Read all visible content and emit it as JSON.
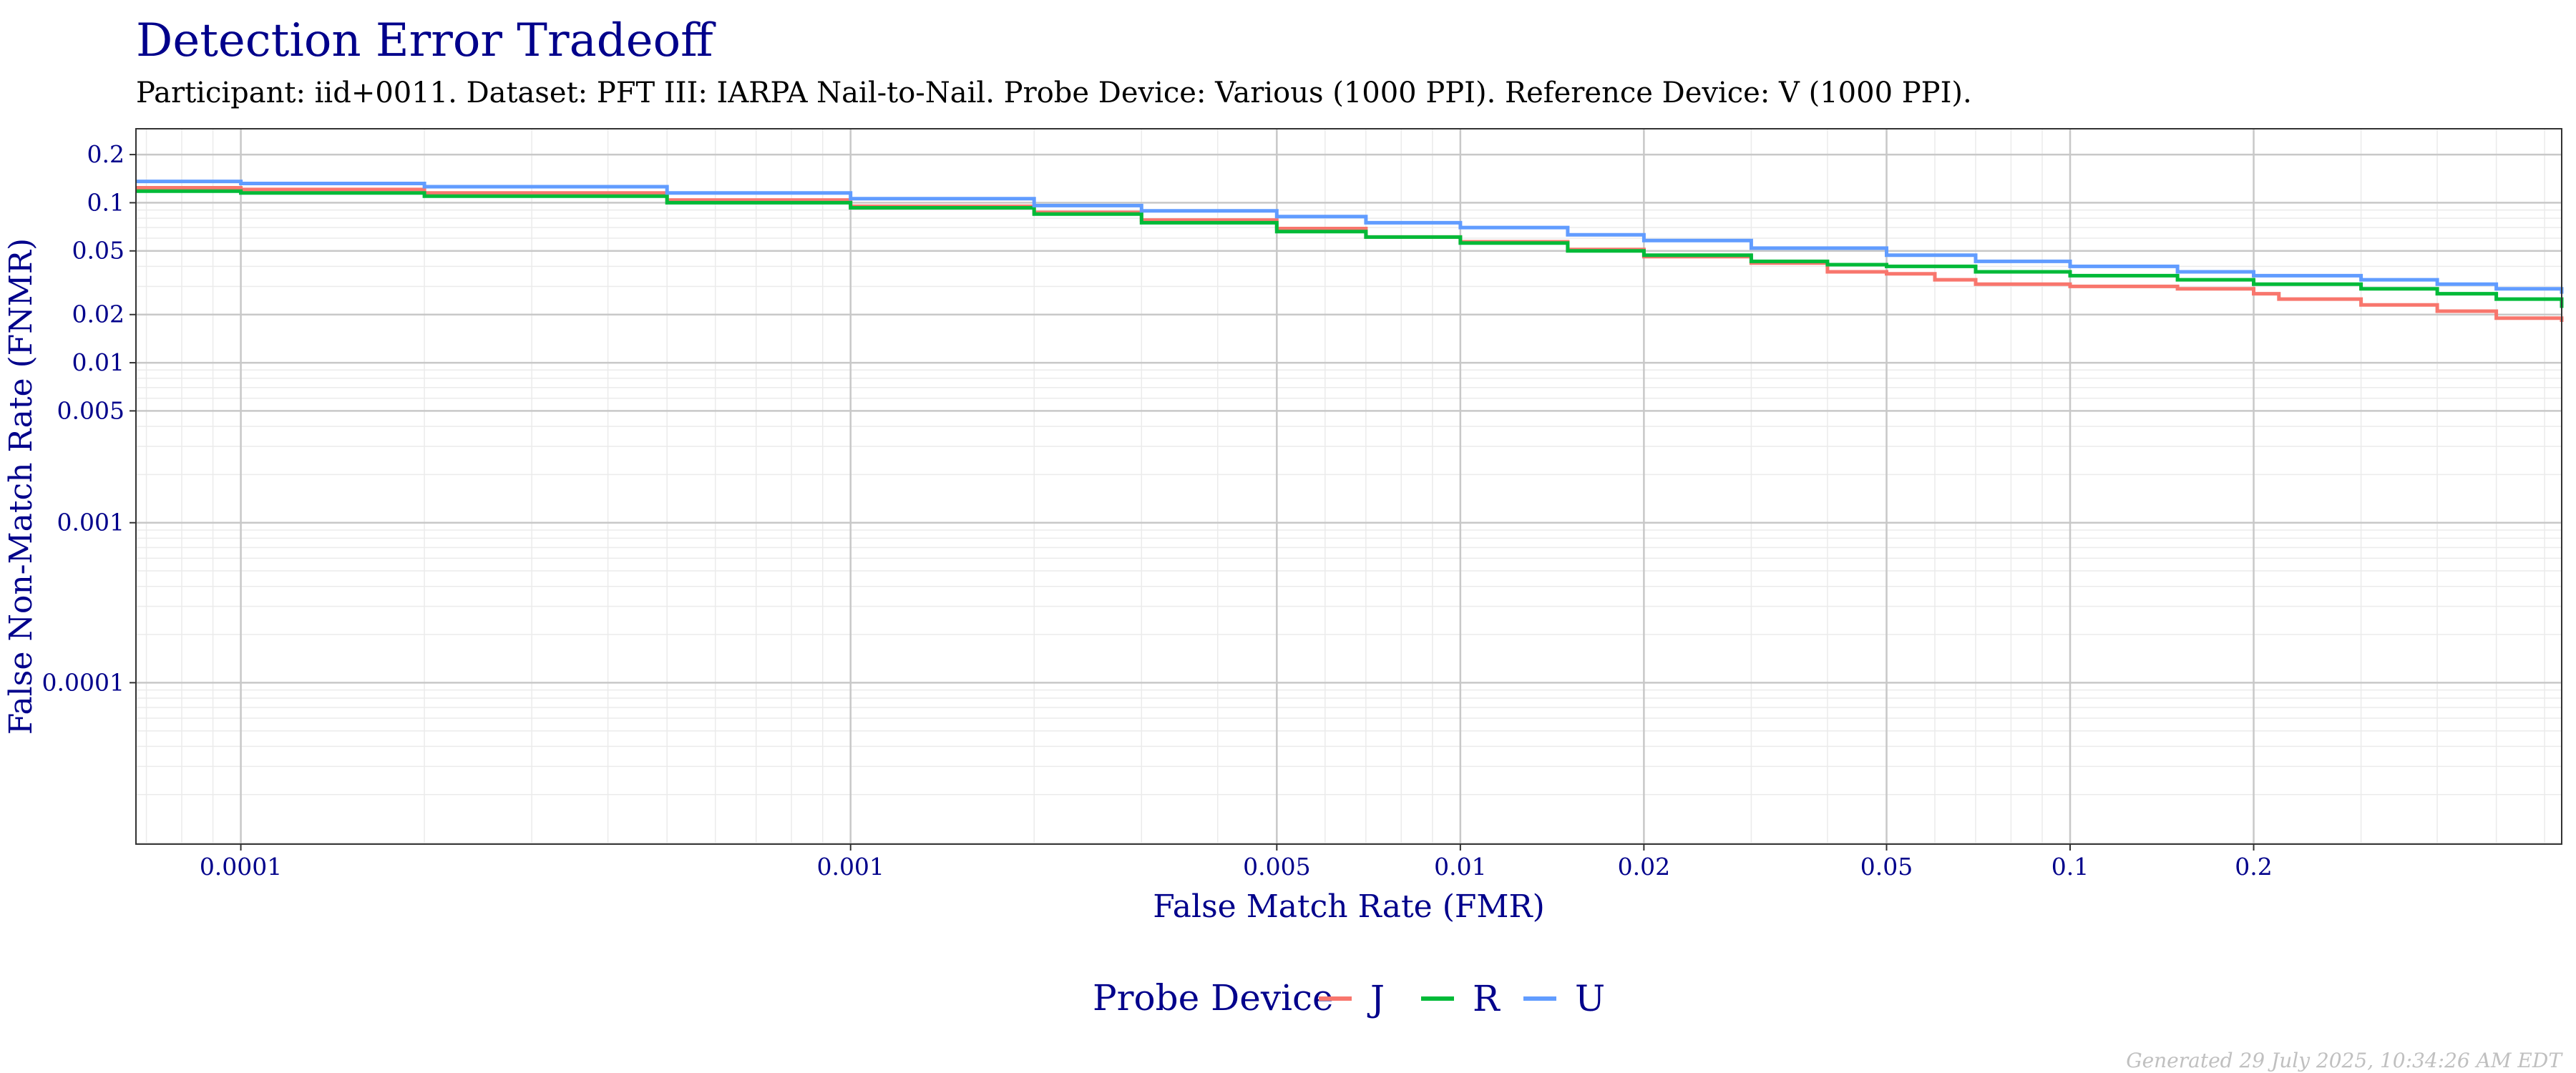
{
  "chart_data": {
    "type": "line",
    "title": "Detection Error Tradeoff",
    "subtitle": "Participant: iid+0011. Dataset: PFT III: IARPA Nail-to-Nail. Probe Device: Various (1000 PPI). Reference Device: V (1000 PPI).",
    "xlabel": "False Match Rate (FMR)",
    "ylabel": "False Non-Match Rate (FNMR)",
    "x_scale": "log",
    "y_scale": "log",
    "xlim": [
      6.73e-05,
      0.64
    ],
    "ylim": [
      9.8e-06,
      0.29
    ],
    "x_ticks": [
      0.0001,
      0.001,
      0.005,
      0.01,
      0.02,
      0.05,
      0.1,
      0.2
    ],
    "x_tick_labels": [
      "0.0001",
      "0.001",
      "0.005",
      "0.01",
      "0.02",
      "0.05",
      "0.1",
      "0.2"
    ],
    "y_ticks": [
      0.2,
      0.1,
      0.05,
      0.02,
      0.01,
      0.005,
      0.001,
      0.0001
    ],
    "y_tick_labels": [
      "0.2",
      "0.1",
      "0.05",
      "0.02",
      "0.01",
      "0.005",
      "0.001",
      "0.0001"
    ],
    "grid": true,
    "legend": {
      "title": "Probe Device",
      "position": "bottom"
    },
    "series": [
      {
        "name": "J",
        "color": "#f8766d",
        "x": [
          6.73e-05,
          0.0001,
          0.0002,
          0.0005,
          0.001,
          0.002,
          0.003,
          0.005,
          0.007,
          0.01,
          0.015,
          0.02,
          0.03,
          0.04,
          0.05,
          0.06,
          0.07,
          0.1,
          0.15,
          0.2,
          0.22,
          0.3,
          0.4,
          0.5,
          0.64
        ],
        "y": [
          0.124,
          0.121,
          0.115,
          0.104,
          0.095,
          0.087,
          0.078,
          0.069,
          0.061,
          0.057,
          0.051,
          0.046,
          0.042,
          0.037,
          0.036,
          0.033,
          0.031,
          0.03,
          0.029,
          0.027,
          0.025,
          0.023,
          0.021,
          0.019,
          0.018
        ]
      },
      {
        "name": "R",
        "color": "#00ba38",
        "x": [
          6.73e-05,
          0.0001,
          0.0002,
          0.0005,
          0.001,
          0.002,
          0.003,
          0.005,
          0.007,
          0.01,
          0.015,
          0.02,
          0.03,
          0.04,
          0.05,
          0.07,
          0.1,
          0.15,
          0.2,
          0.3,
          0.4,
          0.5,
          0.64
        ],
        "y": [
          0.118,
          0.115,
          0.11,
          0.1,
          0.093,
          0.085,
          0.075,
          0.066,
          0.061,
          0.056,
          0.05,
          0.047,
          0.043,
          0.041,
          0.04,
          0.037,
          0.035,
          0.033,
          0.031,
          0.029,
          0.027,
          0.025,
          0.022
        ]
      },
      {
        "name": "U",
        "color": "#619cff",
        "x": [
          6.73e-05,
          0.0001,
          0.0002,
          0.0005,
          0.001,
          0.002,
          0.003,
          0.005,
          0.007,
          0.01,
          0.015,
          0.02,
          0.03,
          0.05,
          0.07,
          0.1,
          0.15,
          0.2,
          0.3,
          0.4,
          0.5,
          0.64
        ],
        "y": [
          0.136,
          0.132,
          0.126,
          0.115,
          0.106,
          0.096,
          0.089,
          0.082,
          0.075,
          0.07,
          0.063,
          0.058,
          0.052,
          0.047,
          0.043,
          0.04,
          0.037,
          0.035,
          0.033,
          0.031,
          0.029,
          0.027
        ]
      }
    ],
    "footer": "Generated 29 July 2025, 10:34:26 AM EDT"
  }
}
